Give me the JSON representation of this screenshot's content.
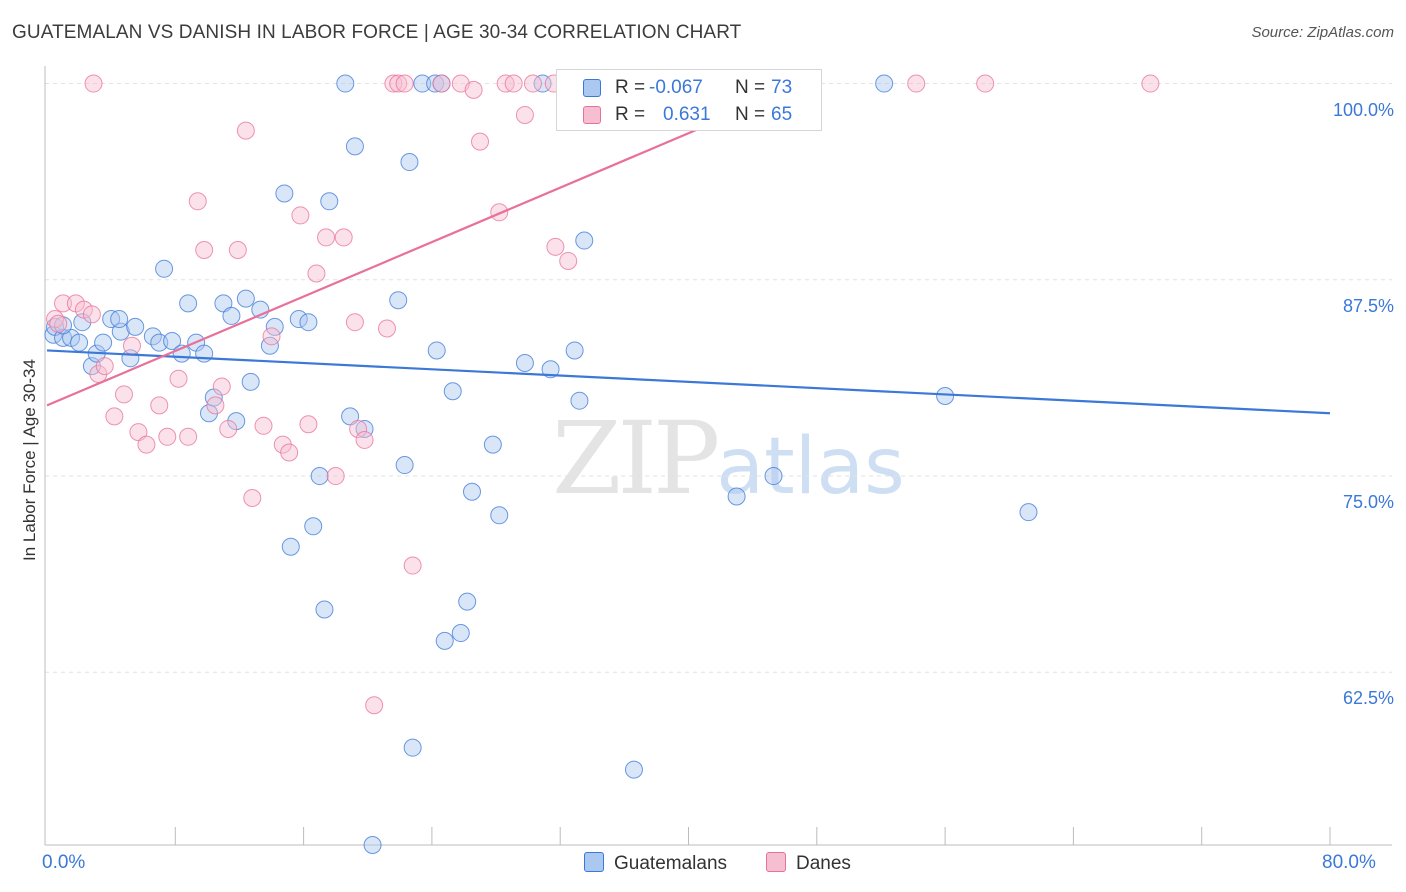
{
  "title": "GUATEMALAN VS DANISH IN LABOR FORCE | AGE 30-34 CORRELATION CHART",
  "source": "Source: ZipAtlas.com",
  "watermark": {
    "zip": "ZIP",
    "atlas": "atlas"
  },
  "colors": {
    "blue": "#3b78d8",
    "blue_fill": "#aac8f0",
    "pink": "#e8709a",
    "pink_fill": "#f6bfd1",
    "grid": "#e2e2e2"
  },
  "legend": {
    "rows": [
      {
        "r_label": "R =",
        "r_value": "-0.067",
        "n_label": "N =",
        "n_value": "73"
      },
      {
        "r_label": "R =",
        "r_value": "0.631",
        "n_label": "N =",
        "n_value": "65"
      }
    ],
    "series": [
      "Guatemalans",
      "Danes"
    ]
  },
  "chart_data": {
    "type": "scatter",
    "title": "GUATEMALAN VS DANISH IN LABOR FORCE | AGE 30-34 CORRELATION CHART",
    "xlabel": "",
    "ylabel": "In Labor Force | Age 30-34",
    "xlim": [
      0,
      80
    ],
    "ylim": [
      51.5,
      101.5
    ],
    "x_tick_labels": [
      "0.0%",
      "80.0%"
    ],
    "y_ticks": [
      62.5,
      75.0,
      87.5,
      100.0
    ],
    "y_tick_labels": [
      "62.5%",
      "75.0%",
      "87.5%",
      "100.0%"
    ],
    "grid": true,
    "legend_position": "top-center",
    "series": [
      {
        "name": "Guatemalans",
        "color": "#3b78d8",
        "trend": {
          "x": [
            0,
            80
          ],
          "y": [
            83.0,
            79.0
          ]
        },
        "points": [
          [
            0.4,
            84.0
          ],
          [
            0.5,
            84.5
          ],
          [
            1.0,
            83.8
          ],
          [
            1.5,
            83.8
          ],
          [
            2.0,
            83.5
          ],
          [
            2.2,
            84.8
          ],
          [
            2.8,
            82.0
          ],
          [
            3.1,
            82.8
          ],
          [
            3.5,
            83.5
          ],
          [
            4.0,
            85.0
          ],
          [
            4.6,
            84.2
          ],
          [
            5.2,
            82.5
          ],
          [
            5.5,
            84.5
          ],
          [
            6.6,
            83.9
          ],
          [
            7.0,
            83.5
          ],
          [
            7.3,
            88.2
          ],
          [
            7.8,
            83.6
          ],
          [
            8.4,
            82.8
          ],
          [
            8.8,
            86.0
          ],
          [
            9.3,
            83.5
          ],
          [
            9.8,
            82.8
          ],
          [
            10.1,
            79.0
          ],
          [
            10.4,
            80.0
          ],
          [
            11.0,
            86.0
          ],
          [
            11.5,
            85.2
          ],
          [
            11.8,
            78.5
          ],
          [
            12.4,
            86.3
          ],
          [
            12.7,
            81.0
          ],
          [
            13.3,
            85.6
          ],
          [
            13.9,
            83.3
          ],
          [
            14.2,
            84.5
          ],
          [
            14.8,
            93.0
          ],
          [
            15.2,
            70.5
          ],
          [
            15.7,
            85.0
          ],
          [
            16.3,
            84.8
          ],
          [
            16.6,
            71.8
          ],
          [
            17.0,
            75.0
          ],
          [
            17.3,
            66.5
          ],
          [
            17.6,
            92.5
          ],
          [
            18.6,
            100.0
          ],
          [
            18.9,
            78.8
          ],
          [
            19.2,
            96.0
          ],
          [
            19.8,
            78.0
          ],
          [
            20.3,
            51.5
          ],
          [
            21.9,
            86.2
          ],
          [
            22.3,
            75.7
          ],
          [
            22.6,
            95.0
          ],
          [
            22.8,
            57.7
          ],
          [
            23.4,
            100.0
          ],
          [
            24.2,
            100.0
          ],
          [
            24.6,
            100.0
          ],
          [
            24.3,
            83.0
          ],
          [
            24.8,
            64.5
          ],
          [
            25.3,
            80.4
          ],
          [
            25.8,
            65.0
          ],
          [
            26.2,
            67.0
          ],
          [
            26.5,
            74.0
          ],
          [
            27.8,
            77.0
          ],
          [
            28.2,
            72.5
          ],
          [
            29.8,
            82.2
          ],
          [
            30.9,
            100.0
          ],
          [
            31.4,
            81.8
          ],
          [
            32.9,
            83.0
          ],
          [
            33.2,
            79.8
          ],
          [
            33.5,
            90.0
          ],
          [
            36.6,
            56.3
          ],
          [
            43.0,
            73.7
          ],
          [
            45.3,
            75.0
          ],
          [
            52.2,
            100.0
          ],
          [
            56.0,
            80.1
          ],
          [
            61.2,
            72.7
          ],
          [
            1.0,
            84.6
          ],
          [
            4.5,
            85.0
          ]
        ]
      },
      {
        "name": "Danes",
        "color": "#e8709a",
        "trend": {
          "x": [
            0,
            47.3
          ],
          "y": [
            79.5,
            100.0
          ]
        },
        "points": [
          [
            0.5,
            85.0
          ],
          [
            0.7,
            84.7
          ],
          [
            1.0,
            86.0
          ],
          [
            1.8,
            86.0
          ],
          [
            2.3,
            85.6
          ],
          [
            2.8,
            85.3
          ],
          [
            3.2,
            81.5
          ],
          [
            3.6,
            82.0
          ],
          [
            4.2,
            78.8
          ],
          [
            4.8,
            80.2
          ],
          [
            5.3,
            83.3
          ],
          [
            5.7,
            77.8
          ],
          [
            6.2,
            77.0
          ],
          [
            7.0,
            79.5
          ],
          [
            7.5,
            77.5
          ],
          [
            8.2,
            81.2
          ],
          [
            8.8,
            77.5
          ],
          [
            9.4,
            92.5
          ],
          [
            9.8,
            89.4
          ],
          [
            10.5,
            79.5
          ],
          [
            10.9,
            80.7
          ],
          [
            11.3,
            78.0
          ],
          [
            11.9,
            89.4
          ],
          [
            12.4,
            97.0
          ],
          [
            12.8,
            73.6
          ],
          [
            13.5,
            78.2
          ],
          [
            14.0,
            83.9
          ],
          [
            14.7,
            77.0
          ],
          [
            15.1,
            76.5
          ],
          [
            15.8,
            91.6
          ],
          [
            16.3,
            78.3
          ],
          [
            16.8,
            87.9
          ],
          [
            17.4,
            90.2
          ],
          [
            18.0,
            75.0
          ],
          [
            18.5,
            90.2
          ],
          [
            19.2,
            84.8
          ],
          [
            19.4,
            78.0
          ],
          [
            19.8,
            77.3
          ],
          [
            20.4,
            60.4
          ],
          [
            21.2,
            84.4
          ],
          [
            21.6,
            100.0
          ],
          [
            21.9,
            100.0
          ],
          [
            22.3,
            100.0
          ],
          [
            22.8,
            69.3
          ],
          [
            24.6,
            100.0
          ],
          [
            25.8,
            100.0
          ],
          [
            26.6,
            99.6
          ],
          [
            27.0,
            96.3
          ],
          [
            28.2,
            91.8
          ],
          [
            28.6,
            100.0
          ],
          [
            29.1,
            100.0
          ],
          [
            29.8,
            98.0
          ],
          [
            30.3,
            100.0
          ],
          [
            31.7,
            89.6
          ],
          [
            32.5,
            88.7
          ],
          [
            31.6,
            100.0
          ],
          [
            34.2,
            100.0
          ],
          [
            36.7,
            100.0
          ],
          [
            39.0,
            100.0
          ],
          [
            44.9,
            100.0
          ],
          [
            47.3,
            100.0
          ],
          [
            54.2,
            100.0
          ],
          [
            58.5,
            100.0
          ],
          [
            68.8,
            100.0
          ],
          [
            2.9,
            100.0
          ]
        ]
      }
    ]
  }
}
